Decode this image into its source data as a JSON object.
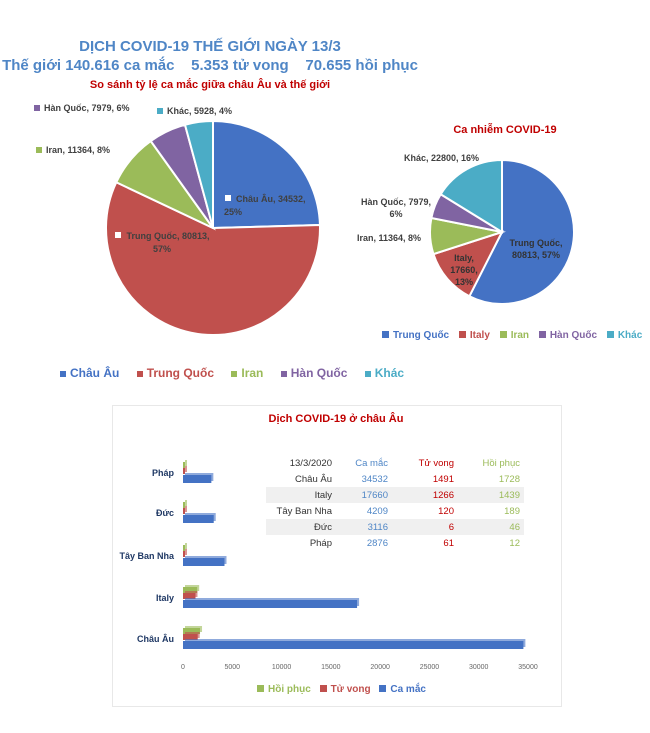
{
  "header": {
    "title": "DỊCH COVID-19 THẾ GIỚI NGÀY 13/3",
    "stats": "Thế giới 140.616 ca mắc    5.353 tử vong    70.655 hồi phục"
  },
  "colors": {
    "blue": "#4472C4",
    "red": "#C0504D",
    "green": "#9BBB59",
    "purple": "#8064A2",
    "cyan": "#4BACC6",
    "title_blue": "#4F86C6",
    "title_red": "#C00000"
  },
  "chart_data": [
    {
      "type": "pie",
      "title": "So sánh tỷ lệ ca mắc giữa châu Âu và thế giới",
      "legend": "bottom",
      "slices": [
        {
          "name": "Châu Âu",
          "value": 34532,
          "percent": 25,
          "label": "Châu Âu, 34532, 25%",
          "color": "#4472C4"
        },
        {
          "name": "Trung Quốc",
          "value": 80813,
          "percent": 57,
          "label": "Trung Quốc, 80813, 57%",
          "color": "#C0504D"
        },
        {
          "name": "Iran",
          "value": 11364,
          "percent": 8,
          "label": "Iran, 11364, 8%",
          "color": "#9BBB59"
        },
        {
          "name": "Hàn Quốc",
          "value": 7979,
          "percent": 6,
          "label": "Hàn Quốc, 7979, 6%",
          "color": "#8064A2"
        },
        {
          "name": "Khác",
          "value": 5928,
          "percent": 4,
          "label": "Khác, 5928, 4%",
          "color": "#4BACC6"
        }
      ]
    },
    {
      "type": "pie",
      "title": "Ca nhiễm COVID-19",
      "legend": "bottom",
      "slices": [
        {
          "name": "Trung Quốc",
          "value": 80813,
          "percent": 57,
          "label": "Trung Quốc, 80813, 57%",
          "color": "#4472C4"
        },
        {
          "name": "Italy",
          "value": 17660,
          "percent": 13,
          "label": "Italy, 17660, 13%",
          "color": "#C0504D"
        },
        {
          "name": "Iran",
          "value": 11364,
          "percent": 8,
          "label": "Iran, 11364, 8%",
          "color": "#9BBB59"
        },
        {
          "name": "Hàn Quốc",
          "value": 7979,
          "percent": 6,
          "label": "Hàn Quốc, 7979, 6%",
          "color": "#8064A2"
        },
        {
          "name": "Khác",
          "value": 22800,
          "percent": 16,
          "label": "Khác, 22800, 16%",
          "color": "#4BACC6"
        }
      ]
    },
    {
      "type": "bar",
      "orientation": "horizontal",
      "title": "Dịch COVID-19 ở châu Âu",
      "categories": [
        "Pháp",
        "Đức",
        "Tây Ban Nha",
        "Italy",
        "Châu Âu"
      ],
      "series": [
        {
          "name": "Hồi phục",
          "values": [
            12,
            46,
            189,
            1439,
            1728
          ],
          "color": "#9BBB59"
        },
        {
          "name": "Tử vong",
          "values": [
            61,
            6,
            120,
            1266,
            1491
          ],
          "color": "#C0504D"
        },
        {
          "name": "Ca mắc",
          "values": [
            2876,
            3116,
            4209,
            17660,
            34532
          ],
          "color": "#4472C4"
        }
      ],
      "xlim": [
        0,
        35000
      ],
      "xticks": [
        "0",
        "5000",
        "10000",
        "15000",
        "20000",
        "25000",
        "30000",
        "35000"
      ],
      "legend": "bottom",
      "table": {
        "header": [
          "13/3/2020",
          "Ca mắc",
          "Tử vong",
          "Hồi phục"
        ],
        "rows": [
          [
            "Châu Âu",
            "34532",
            "1491",
            "1728"
          ],
          [
            "Italy",
            "17660",
            "1266",
            "1439"
          ],
          [
            "Tây Ban Nha",
            "4209",
            "120",
            "189"
          ],
          [
            "Đức",
            "3116",
            "6",
            "46"
          ],
          [
            "Pháp",
            "2876",
            "61",
            "12"
          ]
        ]
      }
    }
  ]
}
